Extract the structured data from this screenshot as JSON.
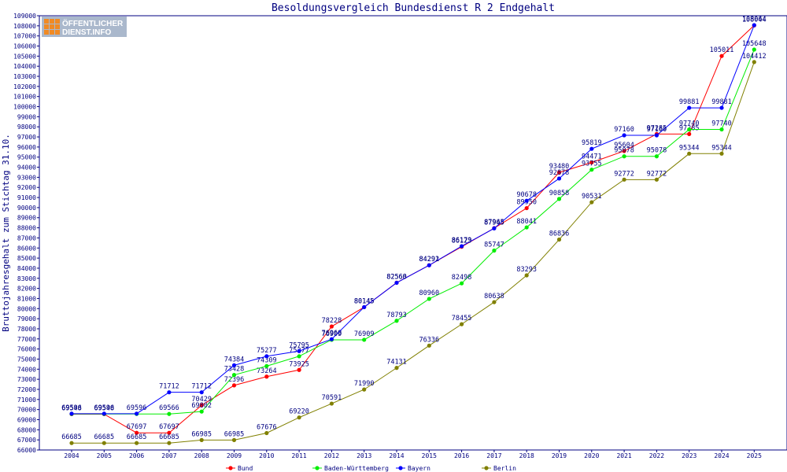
{
  "logo": {
    "line1": "ÖFFENTLICHER",
    "line2": "DIENST.INFO"
  },
  "chart_data": {
    "type": "line",
    "title": "Besoldungsvergleich Bundesdienst R 2 Endgehalt",
    "xlabel": "",
    "ylabel": "Bruttojahresgehalt zum Stichtag 31.10.",
    "ylim": [
      66000,
      109000
    ],
    "ytick_step": 1000,
    "grid": false,
    "legend_position": "bottom",
    "categories": [
      "2004",
      "2005",
      "2006",
      "2007",
      "2008",
      "2009",
      "2010",
      "2011",
      "2012",
      "2013",
      "2014",
      "2015",
      "2016",
      "2017",
      "2018",
      "2019",
      "2020",
      "2021",
      "2022",
      "2023",
      "2024",
      "2025"
    ],
    "series": [
      {
        "name": "Bund",
        "color": "#ff0000",
        "values": [
          69548,
          69548,
          67697,
          67697,
          70429,
          72396,
          73264,
          73925,
          78228,
          80145,
          82568,
          84292,
          86123,
          87965,
          89950,
          93480,
          94471,
          95604,
          97285,
          97285,
          105011,
          108044
        ],
        "labels": [
          "69548",
          "69548",
          "67697",
          "67697",
          "70429",
          "72396",
          "73264",
          "73925",
          "78228",
          "80145",
          "82568",
          "84292",
          "86123",
          "87965",
          "89950",
          "93480",
          "94471",
          "95604",
          "97285",
          "97285",
          "105011",
          "108044"
        ]
      },
      {
        "name": "Baden-Württemberg",
        "color": "#00ee00",
        "values": [
          69566,
          69566,
          69566,
          69566,
          69802,
          73428,
          74309,
          75277,
          76909,
          76909,
          78793,
          80960,
          82498,
          85747,
          88041,
          90858,
          93755,
          95078,
          95078,
          97740,
          97740,
          105648
        ],
        "labels": [
          "",
          "",
          "",
          "69566",
          "69802",
          "73428",
          "74309",
          "75277",
          "76909",
          "76909",
          "78793",
          "80960",
          "82498",
          "85747",
          "88041",
          "90858",
          "93755",
          "95078",
          "95078",
          "97740",
          "97740",
          "105648"
        ]
      },
      {
        "name": "Bayern",
        "color": "#0000ff",
        "values": [
          69596,
          69596,
          69596,
          71712,
          71712,
          74384,
          75277,
          75795,
          76968,
          80145,
          82560,
          84291,
          86179,
          87945,
          90678,
          92878,
          95819,
          97160,
          97160,
          99881,
          99881,
          108064
        ],
        "labels": [
          "69596",
          "69596",
          "69596",
          "71712",
          "71712",
          "74384",
          "75277",
          "75795",
          "76968",
          "80145",
          "82560",
          "84291",
          "86179",
          "87945",
          "90678",
          "92878",
          "95819",
          "97160",
          "97160",
          "99881",
          "99881",
          "108064"
        ]
      },
      {
        "name": "Berlin",
        "color": "#808000",
        "values": [
          66685,
          66685,
          66685,
          66685,
          66985,
          66985,
          67676,
          69220,
          70591,
          71990,
          74131,
          76336,
          78455,
          80638,
          83293,
          86836,
          90531,
          92772,
          92772,
          95344,
          95344,
          104412
        ],
        "labels": [
          "66685",
          "66685",
          "66685",
          "66685",
          "66985",
          "66985",
          "67676",
          "69220",
          "70591",
          "71990",
          "74131",
          "76336",
          "78455",
          "80638",
          "83293",
          "86836",
          "90531",
          "92772",
          "92772",
          "95344",
          "95344",
          "104412"
        ]
      }
    ]
  }
}
